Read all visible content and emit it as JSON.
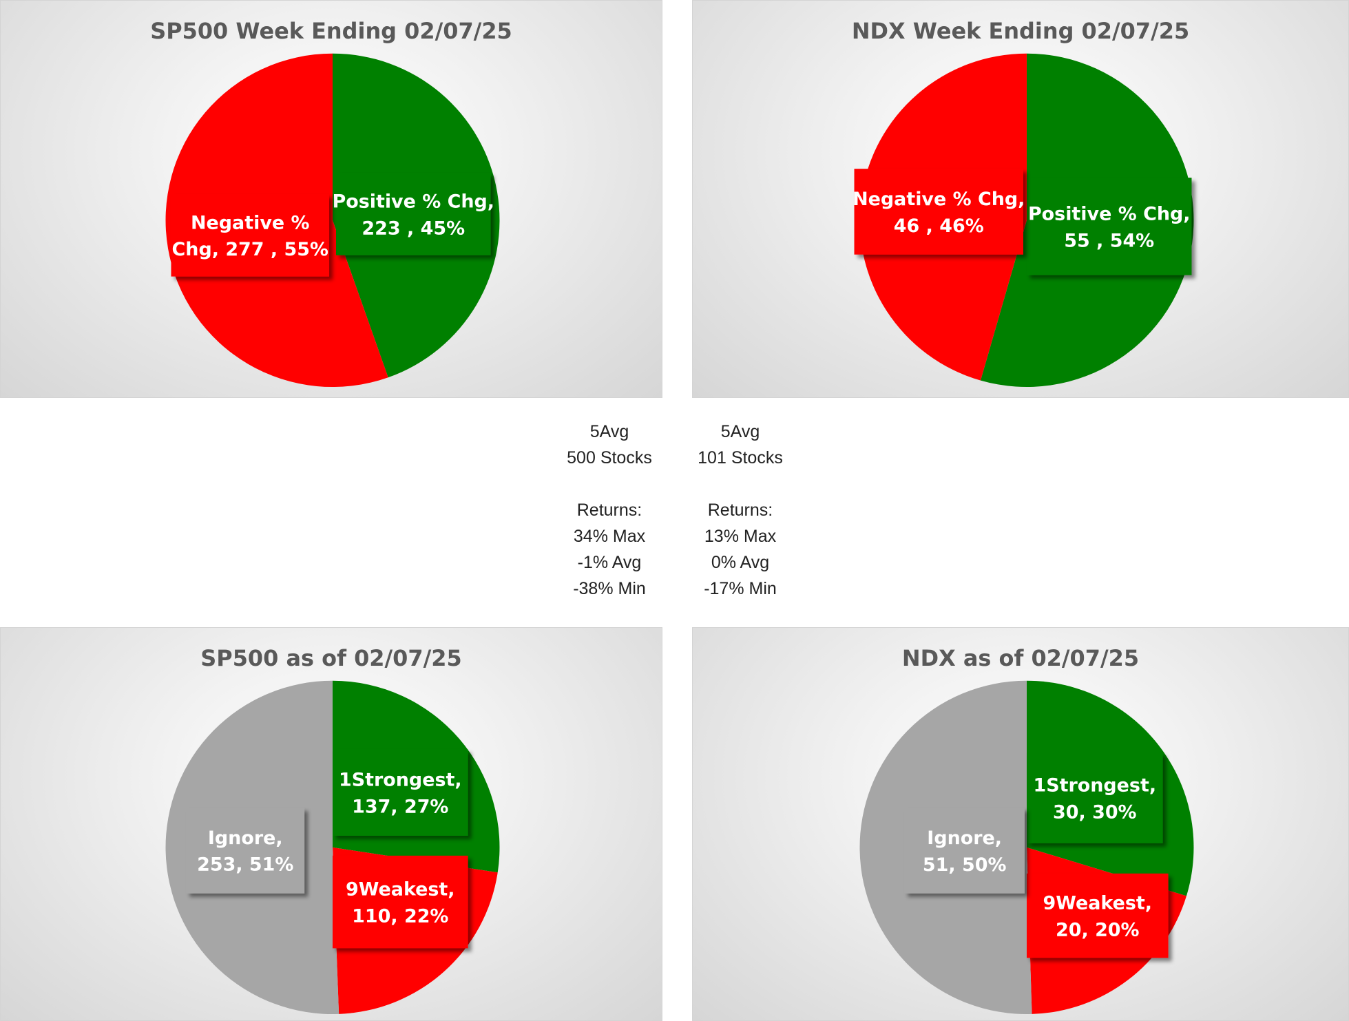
{
  "colors": {
    "positive": "#008000",
    "negative": "#ff0000",
    "ignore": "#a6a6a6",
    "title": "#595959",
    "label": "#ffffff"
  },
  "chart_data": [
    {
      "type": "pie",
      "title": "SP500 Week Ending 02/07/25",
      "slices": [
        {
          "name": "Positive % Chg",
          "value": 223,
          "percent": 45,
          "color": "#008000",
          "label_lines": [
            "Positive % Chg,",
            "223 , 45%"
          ]
        },
        {
          "name": "Negative % Chg",
          "value": 277,
          "percent": 55,
          "color": "#ff0000",
          "label_lines": [
            "Negative %",
            "Chg,  277 , 55%"
          ]
        }
      ]
    },
    {
      "type": "pie",
      "title": "NDX Week Ending 02/07/25",
      "slices": [
        {
          "name": "Positive % Chg",
          "value": 55,
          "percent": 54,
          "color": "#008000",
          "label_lines": [
            "Positive % Chg,",
            "55 , 54%"
          ]
        },
        {
          "name": "Negative % Chg",
          "value": 46,
          "percent": 46,
          "color": "#ff0000",
          "label_lines": [
            "Negative % Chg,",
            "46 , 46%"
          ]
        }
      ]
    },
    {
      "type": "pie",
      "title": "SP500 as of 02/07/25",
      "slices": [
        {
          "name": "1Strongest",
          "value": 137,
          "percent": 27,
          "color": "#008000",
          "label_lines": [
            "1Strongest,",
            "137, 27%"
          ]
        },
        {
          "name": "9Weakest",
          "value": 110,
          "percent": 22,
          "color": "#ff0000",
          "label_lines": [
            "9Weakest,",
            "110, 22%"
          ]
        },
        {
          "name": "Ignore",
          "value": 253,
          "percent": 51,
          "color": "#a6a6a6",
          "label_lines": [
            "Ignore,",
            "253, 51%"
          ]
        }
      ]
    },
    {
      "type": "pie",
      "title": "NDX as of 02/07/25",
      "slices": [
        {
          "name": "1Strongest",
          "value": 30,
          "percent": 30,
          "color": "#008000",
          "label_lines": [
            "1Strongest,",
            "30, 30%"
          ]
        },
        {
          "name": "9Weakest",
          "value": 20,
          "percent": 20,
          "color": "#ff0000",
          "label_lines": [
            "9Weakest,",
            "20, 20%"
          ]
        },
        {
          "name": "Ignore",
          "value": 51,
          "percent": 50,
          "color": "#a6a6a6",
          "label_lines": [
            "Ignore,",
            "51, 50%"
          ]
        }
      ]
    }
  ],
  "stats": {
    "sp500": [
      "5Avg",
      "500 Stocks",
      "",
      "Returns:",
      "34% Max",
      "-1% Avg",
      "-38% Min"
    ],
    "ndx": [
      "5Avg",
      "101 Stocks",
      "",
      "Returns:",
      "13% Max",
      "0% Avg",
      "-17% Min"
    ]
  }
}
